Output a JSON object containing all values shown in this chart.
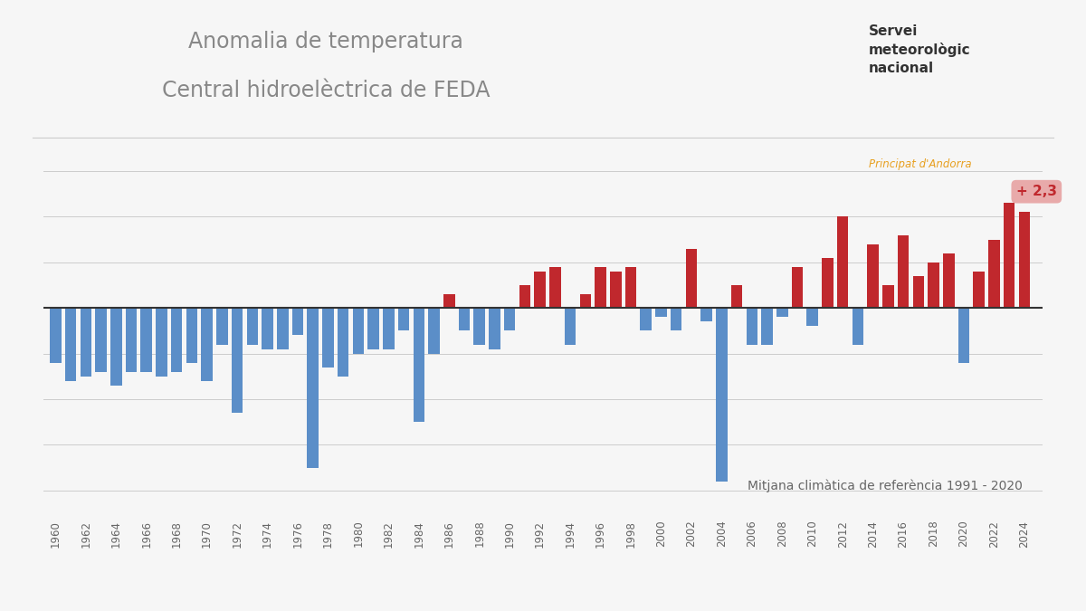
{
  "title_line1": "Anomalia de temperatura",
  "title_line2": "Central hidroelèctrica de FEDA",
  "reference_label": "Mitjana climàtica de referència 1991 - 2020",
  "annotation_label": "+ 2,3",
  "years": [
    1960,
    1961,
    1962,
    1963,
    1964,
    1965,
    1966,
    1967,
    1968,
    1969,
    1970,
    1971,
    1972,
    1973,
    1974,
    1975,
    1976,
    1977,
    1978,
    1979,
    1980,
    1981,
    1982,
    1983,
    1984,
    1985,
    1986,
    1987,
    1988,
    1989,
    1990,
    1991,
    1992,
    1993,
    1994,
    1995,
    1996,
    1997,
    1998,
    1999,
    2000,
    2001,
    2002,
    2003,
    2004,
    2005,
    2006,
    2007,
    2008,
    2009,
    2010,
    2011,
    2012,
    2013,
    2014,
    2015,
    2016,
    2017,
    2018,
    2019,
    2020,
    2021,
    2022,
    2023,
    2024
  ],
  "values": [
    -1.2,
    -1.6,
    -1.5,
    -1.4,
    -1.7,
    -1.4,
    -1.4,
    -1.5,
    -1.4,
    -1.2,
    -1.6,
    -0.8,
    -2.3,
    -0.8,
    -0.9,
    -0.9,
    -0.6,
    -3.5,
    -1.3,
    -1.5,
    -1.0,
    -0.9,
    -0.9,
    -0.5,
    -2.5,
    -1.0,
    0.3,
    -0.5,
    -0.8,
    -0.9,
    -0.5,
    0.5,
    0.8,
    0.9,
    -0.8,
    0.3,
    0.9,
    0.8,
    0.9,
    -0.5,
    -0.2,
    -0.5,
    1.3,
    -0.3,
    -3.8,
    0.5,
    -0.8,
    -0.8,
    -0.2,
    0.9,
    -0.4,
    1.1,
    2.0,
    -0.8,
    1.4,
    0.5,
    1.6,
    0.7,
    1.0,
    1.2,
    -1.2,
    0.8,
    1.5,
    2.3,
    2.1
  ],
  "positive_color": "#C0282D",
  "negative_color": "#5B8EC8",
  "background_color": "#F6F6F6",
  "plot_bg_color": "#F6F6F6",
  "grid_color": "#CCCCCC",
  "annotation_bg": "#E8AAAA",
  "annotation_text_color": "#C0282D",
  "zero_line_color": "#333333",
  "tick_color": "#666666",
  "title_color": "#888888",
  "ref_text_color": "#666666",
  "ylim_min": -4.5,
  "ylim_max": 3.0,
  "title_fontsize": 17,
  "tick_label_fontsize": 8.5,
  "reference_fontsize": 10,
  "annotation_fontsize": 11,
  "logo_text": "Servei\nmeteorològic\nnacional",
  "logo_subtext": "Principat d'Andorra",
  "logo_color": "#333333",
  "logo_subcolor": "#E8A020"
}
